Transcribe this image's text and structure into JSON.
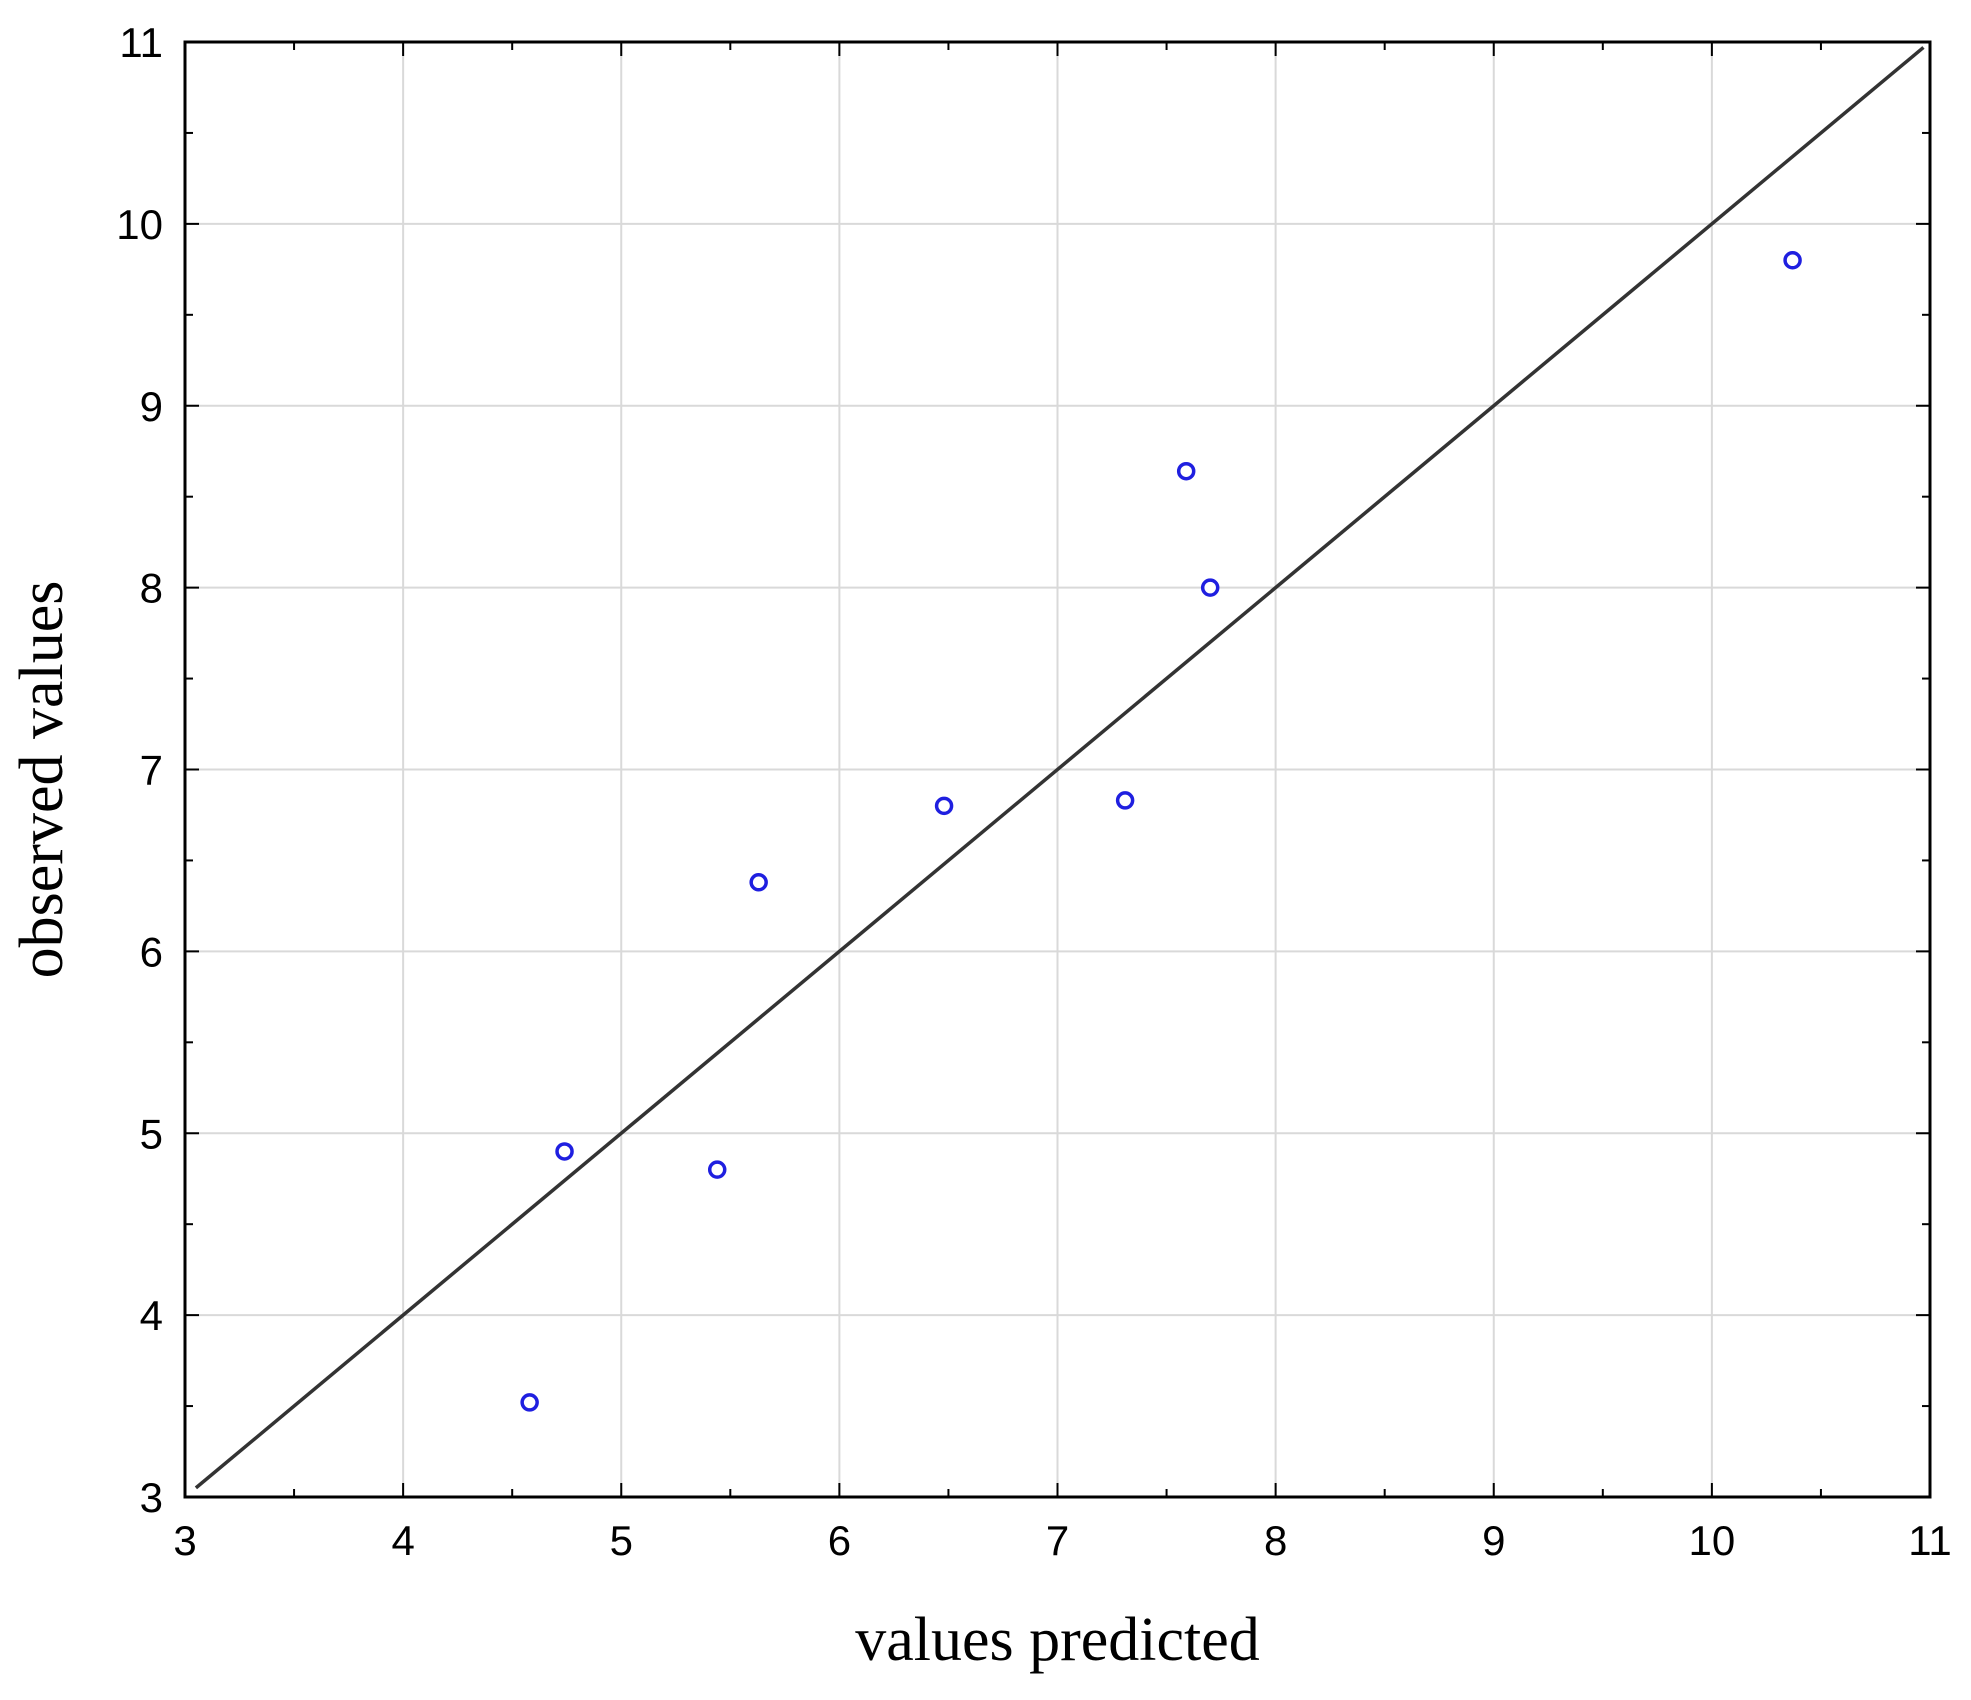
{
  "chart_data": {
    "type": "scatter",
    "title": "",
    "xlabel": "values predicted",
    "ylabel": "observed values",
    "xlim": [
      3,
      11
    ],
    "ylim": [
      3,
      11
    ],
    "x_ticks": [
      "3",
      "4",
      "5",
      "6",
      "7",
      "8",
      "9",
      "10",
      "11"
    ],
    "y_ticks": [
      "3",
      "4",
      "5",
      "6",
      "7",
      "8",
      "9",
      "10",
      "11"
    ],
    "grid": true,
    "legend": "none",
    "points": [
      {
        "x": 4.58,
        "y": 3.52
      },
      {
        "x": 4.74,
        "y": 4.9
      },
      {
        "x": 5.44,
        "y": 4.8
      },
      {
        "x": 5.63,
        "y": 6.38
      },
      {
        "x": 6.48,
        "y": 6.8
      },
      {
        "x": 7.31,
        "y": 6.83
      },
      {
        "x": 7.59,
        "y": 8.64
      },
      {
        "x": 7.7,
        "y": 8.0
      },
      {
        "x": 10.37,
        "y": 9.8
      }
    ],
    "reference_line": {
      "x": [
        3.05,
        10.97
      ],
      "y": [
        3.05,
        10.97
      ]
    },
    "colors": {
      "points": "#1f1fe0",
      "line": "#333333",
      "grid": "#d9d9d9",
      "axes": "#000000"
    }
  }
}
